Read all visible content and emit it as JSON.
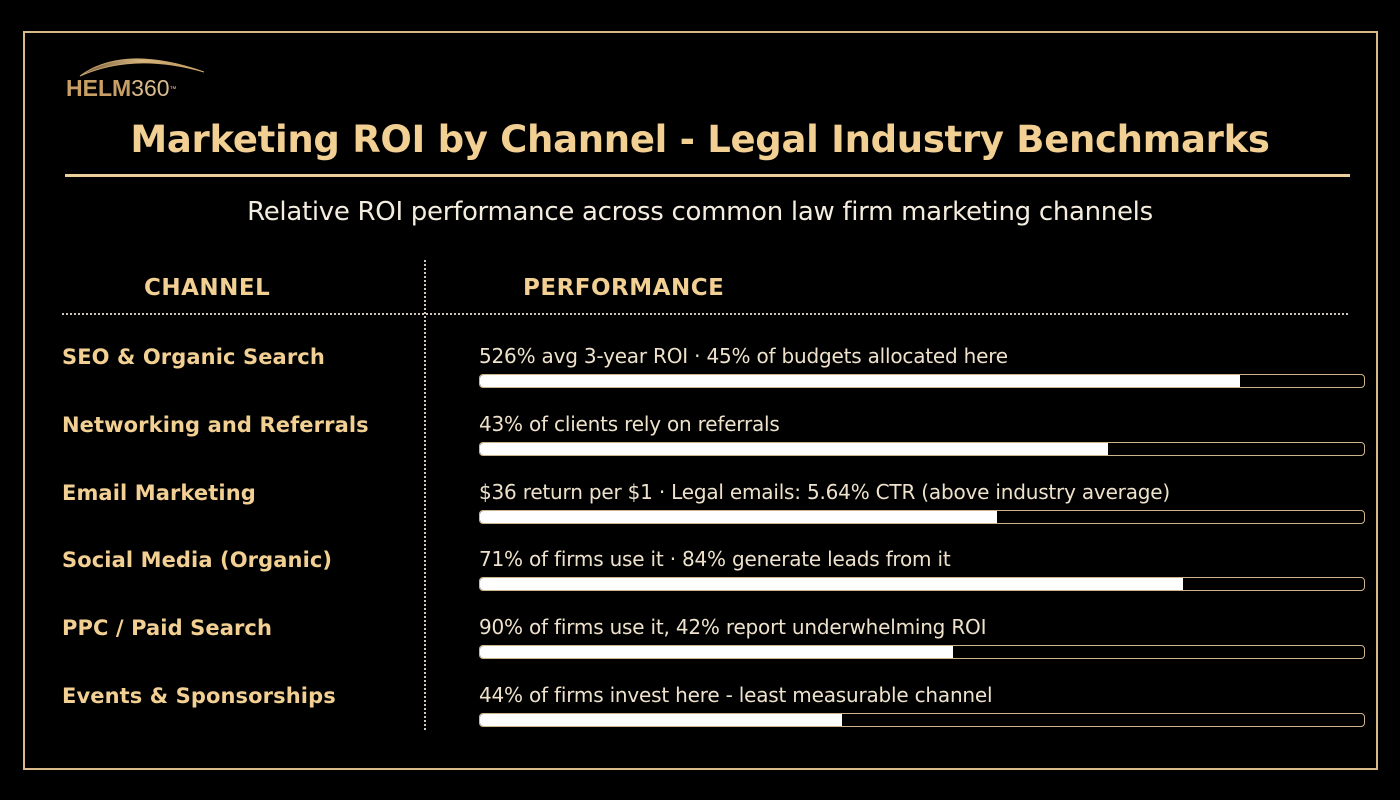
{
  "brand": {
    "logo_bold": "HELM",
    "logo_thin": "360",
    "logo_tm": "™",
    "accent_color": "#f2cf92",
    "frame_color": "#d9b98a",
    "bar_fill_color": "#ffffff",
    "background_color": "#000000"
  },
  "header": {
    "title": "Marketing ROI by Channel - Legal Industry Benchmarks",
    "subtitle": "Relative ROI performance across common law firm marketing channels"
  },
  "table": {
    "columns": [
      "CHANNEL",
      "PERFORMANCE"
    ],
    "rows": [
      {
        "channel": "SEO & Organic Search",
        "note": "526% avg 3-year ROI · 45% of budgets allocated here",
        "bar_pct": 86
      },
      {
        "channel": "Networking and Referrals",
        "note": "43% of clients rely on referrals",
        "bar_pct": 71
      },
      {
        "channel": "Email Marketing",
        "note": "$36 return per $1 · Legal emails: 5.64% CTR (above industry average)",
        "bar_pct": 58.5
      },
      {
        "channel": "Social Media (Organic)",
        "note": "71% of firms use it · 84% generate leads from it",
        "bar_pct": 79.5
      },
      {
        "channel": "PPC / Paid Search",
        "note": "90% of firms use it, 42% report underwhelming ROI",
        "bar_pct": 53.5
      },
      {
        "channel": "Events & Sponsorships",
        "note": "44% of firms invest here - least measurable channel",
        "bar_pct": 41
      }
    ]
  },
  "chart_data": {
    "type": "bar",
    "orientation": "horizontal",
    "title": "Marketing ROI by Channel - Legal Industry Benchmarks",
    "subtitle": "Relative ROI performance across common law firm marketing channels",
    "xlabel": "PERFORMANCE",
    "ylabel": "CHANNEL",
    "categories": [
      "SEO & Organic Search",
      "Networking and Referrals",
      "Email Marketing",
      "Social Media (Organic)",
      "PPC / Paid Search",
      "Events & Sponsorships"
    ],
    "values": [
      86,
      71,
      58.5,
      79.5,
      53.5,
      41
    ],
    "value_unit": "relative % of bar track (estimated from pixels, no axis shown)",
    "annotations": [
      "526% avg 3-year ROI · 45% of budgets allocated here",
      "43% of clients rely on referrals",
      "$36 return per $1 · Legal emails: 5.64% CTR (above industry average)",
      "71% of firms use it · 84% generate leads from it",
      "90% of firms use it, 42% report underwhelming ROI",
      "44% of firms invest here - least measurable channel"
    ],
    "xlim": [
      0,
      100
    ],
    "grid": false,
    "legend": null
  }
}
